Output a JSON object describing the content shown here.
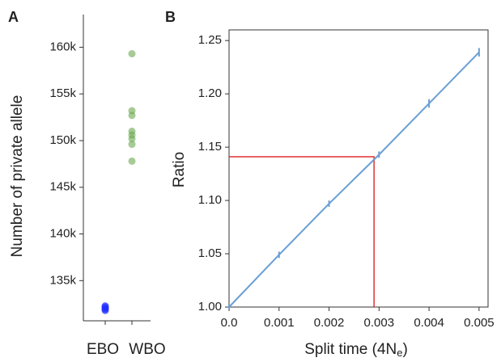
{
  "chart_data": [
    {
      "type": "strip",
      "panel": "A",
      "ylabel": "Number of private allele",
      "categories": [
        "EBO",
        "WBO"
      ],
      "points": [
        [
          132300,
          132100,
          131900,
          132200,
          132000,
          131800
        ],
        [
          159300,
          153200,
          152700,
          151000,
          150600,
          150200,
          149600,
          147800
        ]
      ],
      "colors": [
        "#1f2fff",
        "#6aa84f"
      ],
      "ylim": [
        130700,
        163500
      ],
      "yticks": [
        {
          "value": 135000,
          "label": "135k"
        },
        {
          "value": 140000,
          "label": "140k"
        },
        {
          "value": 145000,
          "label": "145k"
        },
        {
          "value": 150000,
          "label": "150k"
        },
        {
          "value": 155000,
          "label": "155k"
        },
        {
          "value": 160000,
          "label": "160k"
        }
      ]
    },
    {
      "type": "line",
      "panel": "B",
      "ylabel": "Ratio",
      "xlabel": "Split time (4N",
      "xlabel_sub": "e",
      "xlabel_end": ")",
      "x": [
        0,
        0.001,
        0.002,
        0.003,
        0.004,
        0.005
      ],
      "series": [
        {
          "color": "#6a9fd4",
          "values": [
            1.0,
            1.049,
            1.097,
            1.143,
            1.191,
            1.239
          ],
          "errors": [
            0.002,
            0.003,
            0.003,
            0.003,
            0.004,
            0.004
          ]
        }
      ],
      "reference": {
        "x": 0.0029,
        "y": 1.141,
        "color": "#e03030"
      },
      "xlim": [
        0,
        0.00518
      ],
      "ylim": [
        1.0,
        1.26
      ],
      "xticks": [
        {
          "value": 0,
          "label": "0.0"
        },
        0.001,
        0.002,
        0.003,
        0.004,
        0.005
      ],
      "yticks": [
        {
          "value": 1.0,
          "label": "1.00"
        },
        {
          "value": 1.05,
          "label": "1.05"
        },
        {
          "value": 1.1,
          "label": "1.10"
        },
        {
          "value": 1.15,
          "label": "1.15"
        },
        {
          "value": 1.2,
          "label": "1.20"
        },
        {
          "value": 1.25,
          "label": "1.25"
        }
      ]
    }
  ]
}
